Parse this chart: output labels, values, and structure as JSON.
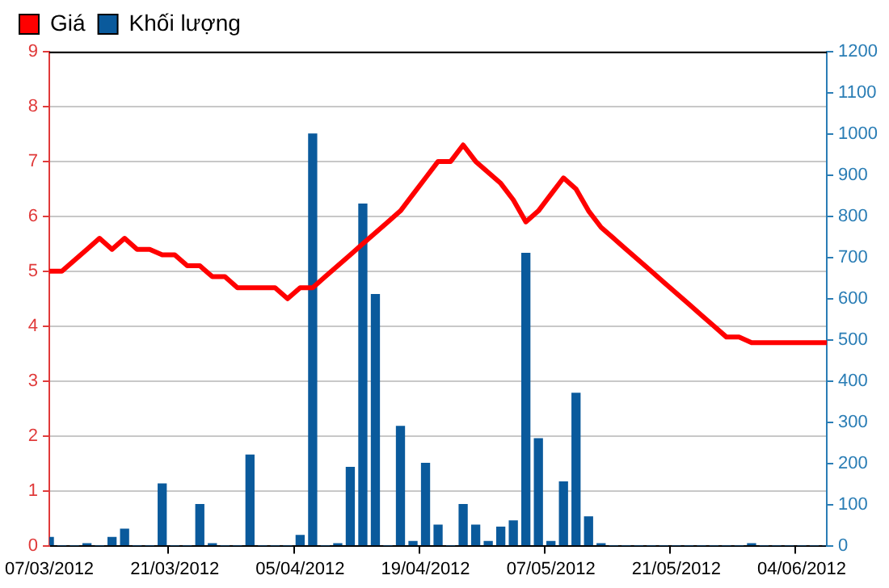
{
  "chart_data": {
    "type": "bar",
    "categories": [
      "07/03/2012",
      null,
      null,
      null,
      null,
      null,
      null,
      null,
      null,
      null,
      "21/03/2012",
      null,
      null,
      null,
      null,
      null,
      null,
      null,
      null,
      null,
      "05/04/2012",
      null,
      null,
      null,
      null,
      null,
      null,
      null,
      null,
      null,
      "19/04/2012",
      null,
      null,
      null,
      null,
      null,
      null,
      null,
      null,
      null,
      "07/05/2012",
      null,
      null,
      null,
      null,
      null,
      null,
      null,
      null,
      null,
      "21/05/2012",
      null,
      null,
      null,
      null,
      null,
      null,
      null,
      null,
      null,
      "04/06/2012",
      null,
      null
    ],
    "series": [
      {
        "name": "Giá",
        "type": "line",
        "color": "#ff0000",
        "values": [
          5.0,
          5.0,
          5.2,
          5.4,
          5.6,
          5.4,
          5.6,
          5.4,
          5.4,
          5.3,
          5.3,
          5.1,
          5.1,
          4.9,
          4.9,
          4.7,
          4.7,
          4.7,
          4.7,
          4.5,
          4.7,
          4.7,
          4.9,
          5.1,
          5.3,
          5.5,
          5.7,
          5.9,
          6.1,
          6.4,
          6.7,
          7.0,
          7.0,
          7.3,
          7.0,
          6.8,
          6.6,
          6.3,
          5.9,
          6.1,
          6.4,
          6.7,
          6.5,
          6.1,
          5.8,
          5.6,
          5.4,
          5.2,
          5.0,
          4.8,
          4.6,
          4.4,
          4.2,
          4.0,
          3.8,
          3.8,
          3.7,
          3.7,
          3.7,
          3.7,
          3.7,
          3.7,
          3.7
        ]
      },
      {
        "name": "Khối lượng",
        "axis": "y2",
        "color": "#0a5a9c",
        "values": [
          20,
          0,
          0,
          5,
          0,
          20,
          40,
          0,
          0,
          150,
          0,
          0,
          100,
          5,
          0,
          0,
          220,
          0,
          0,
          0,
          25,
          1000,
          0,
          5,
          190,
          830,
          610,
          0,
          290,
          10,
          200,
          50,
          0,
          100,
          50,
          10,
          45,
          60,
          710,
          260,
          10,
          155,
          370,
          70,
          5,
          0,
          0,
          0,
          0,
          0,
          0,
          0,
          0,
          0,
          0,
          0,
          5,
          0,
          0,
          0,
          0,
          0,
          0
        ]
      }
    ],
    "ylim": [
      0,
      9
    ],
    "yticks": [
      0,
      1,
      2,
      3,
      4,
      5,
      6,
      7,
      8,
      9
    ],
    "y2lim": [
      0,
      1200
    ],
    "y2ticks": [
      0,
      100,
      200,
      300,
      400,
      500,
      600,
      700,
      800,
      900,
      1000,
      1100,
      1200
    ],
    "grid": "y",
    "legend": "top left"
  }
}
